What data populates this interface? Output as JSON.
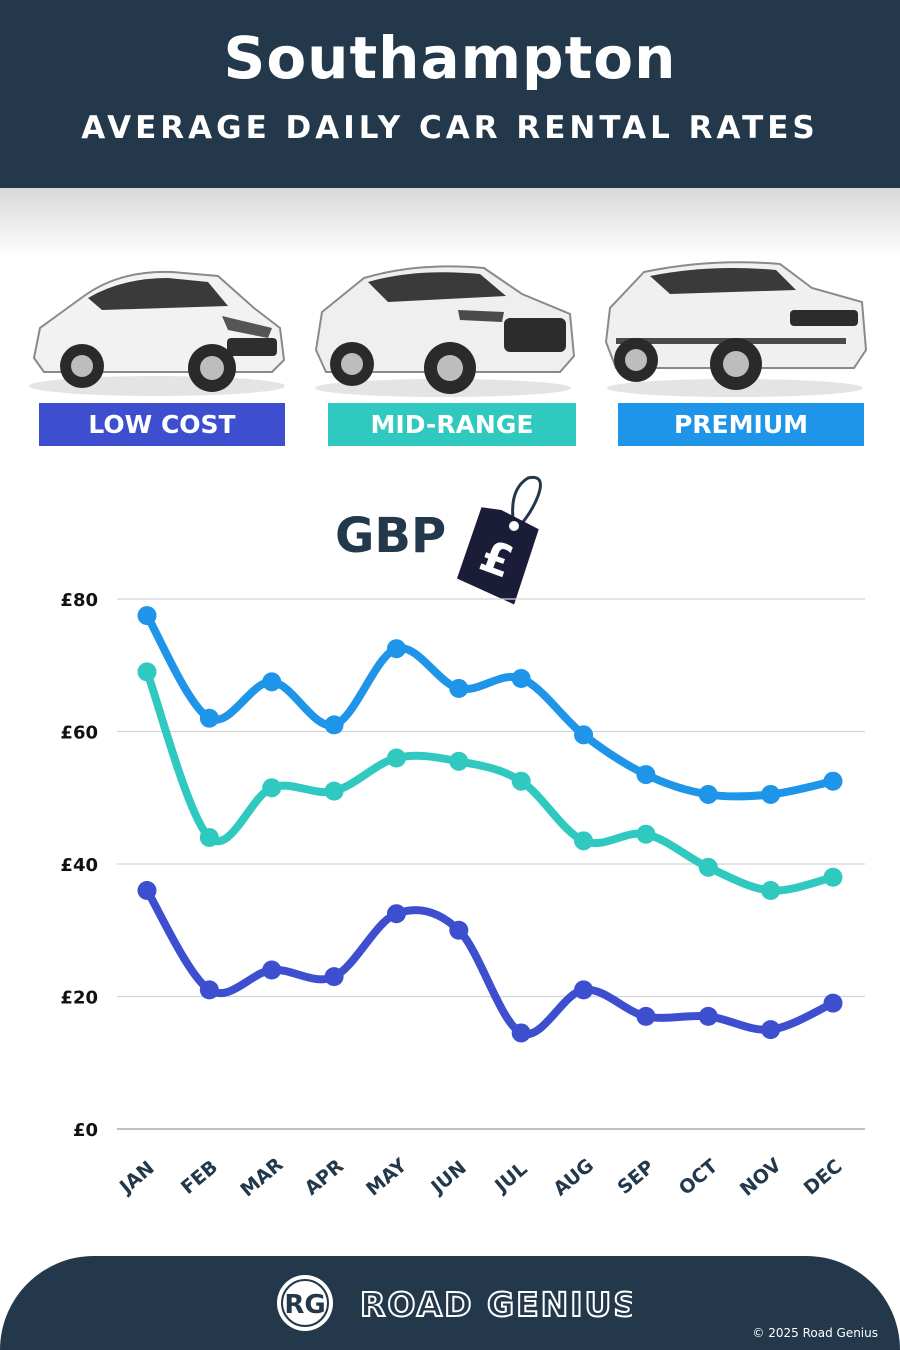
{
  "header": {
    "title": "Southampton",
    "subtitle": "AVERAGE DAILY CAR RENTAL RATES"
  },
  "categories": {
    "low": "LOW COST",
    "mid": "MID-RANGE",
    "premium": "PREMIUM"
  },
  "currency_label": "GBP",
  "tag_symbol": "£",
  "footer": {
    "logo_mark": "RG",
    "brand": "ROAD GENIUS",
    "copyright": "© 2025 Road Genius"
  },
  "colors": {
    "header_bg": "#23394b",
    "low": "#3d4fcf",
    "mid": "#2fc9c0",
    "premium": "#1e95e8",
    "grid": "#d4d4d4",
    "text": "#23394b"
  },
  "chart_data": {
    "type": "line",
    "categories": [
      "JAN",
      "FEB",
      "MAR",
      "APR",
      "MAY",
      "JUN",
      "JUL",
      "AUG",
      "SEP",
      "OCT",
      "NOV",
      "DEC"
    ],
    "ylim": [
      0,
      80
    ],
    "yticks": [
      0,
      20,
      40,
      60,
      80
    ],
    "ytick_labels": [
      "£0",
      "£20",
      "£40",
      "£60",
      "£80"
    ],
    "grid": true,
    "series": [
      {
        "key": "premium",
        "color": "#1e95e8",
        "values": [
          77.5,
          62,
          67.5,
          61,
          72.5,
          66.5,
          68,
          59.5,
          53.5,
          50.5,
          50.5,
          52.5
        ]
      },
      {
        "key": "mid",
        "color": "#2fc9c0",
        "values": [
          69,
          44,
          51.5,
          51,
          56,
          55.5,
          52.5,
          43.5,
          44.5,
          39.5,
          36,
          38
        ]
      },
      {
        "key": "low",
        "color": "#3d4fcf",
        "values": [
          36,
          21,
          24,
          23,
          32.5,
          30,
          14.5,
          21,
          17,
          17,
          15,
          19
        ]
      }
    ]
  }
}
